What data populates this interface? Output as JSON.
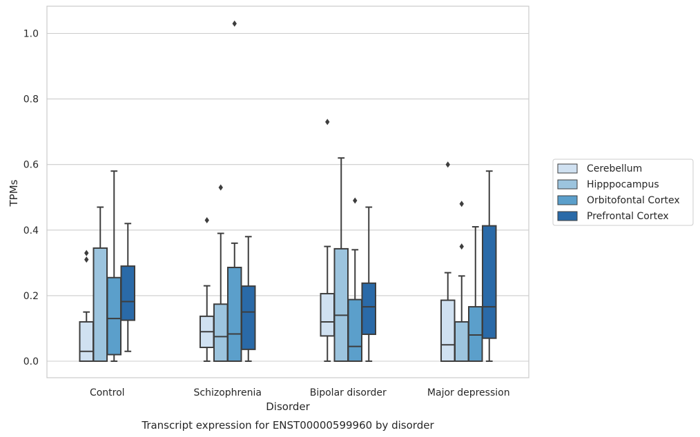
{
  "chart_data": {
    "type": "box",
    "title": "",
    "caption": "Transcript expression for ENST00000599960 by disorder",
    "xlabel": "Disorder",
    "ylabel": "TPMs",
    "ylim": [
      -0.05,
      1.08
    ],
    "yticks": [
      "0.0",
      "0.2",
      "0.4",
      "0.6",
      "0.8",
      "1.0"
    ],
    "grid": "horizontal",
    "legend_position": "right",
    "categories": [
      "Control",
      "Schizophrenia",
      "Bipolar disorder",
      "Major depression"
    ],
    "series": [
      {
        "name": "Cerebellum",
        "color": "#d0e1f1",
        "boxes": [
          {
            "whislo": 0.0,
            "q1": 0.0,
            "med": 0.03,
            "q3": 0.12,
            "whishi": 0.15,
            "fliers": [
              0.31,
              0.33
            ]
          },
          {
            "whislo": 0.0,
            "q1": 0.042,
            "med": 0.09,
            "q3": 0.137,
            "whishi": 0.23,
            "fliers": [
              0.43
            ]
          },
          {
            "whislo": 0.0,
            "q1": 0.077,
            "med": 0.12,
            "q3": 0.206,
            "whishi": 0.35,
            "fliers": [
              0.73
            ]
          },
          {
            "whislo": 0.0,
            "q1": 0.0,
            "med": 0.05,
            "q3": 0.186,
            "whishi": 0.27,
            "fliers": [
              0.6
            ]
          }
        ]
      },
      {
        "name": "Hipppocampus",
        "color": "#9cc4de",
        "boxes": [
          {
            "whislo": 0.0,
            "q1": 0.0,
            "med": 0.0,
            "q3": 0.345,
            "whishi": 0.47,
            "fliers": []
          },
          {
            "whislo": 0.0,
            "q1": 0.0,
            "med": 0.075,
            "q3": 0.174,
            "whishi": 0.39,
            "fliers": [
              0.53
            ]
          },
          {
            "whislo": 0.0,
            "q1": 0.0,
            "med": 0.14,
            "q3": 0.343,
            "whishi": 0.62,
            "fliers": []
          },
          {
            "whislo": 0.0,
            "q1": 0.0,
            "med": 0.0,
            "q3": 0.12,
            "whishi": 0.26,
            "fliers": [
              0.35,
              0.48
            ]
          }
        ]
      },
      {
        "name": "Orbitofontal Cortex",
        "color": "#5b9fcb",
        "boxes": [
          {
            "whislo": 0.0,
            "q1": 0.02,
            "med": 0.13,
            "q3": 0.255,
            "whishi": 0.58,
            "fliers": []
          },
          {
            "whislo": 0.0,
            "q1": 0.0,
            "med": 0.083,
            "q3": 0.286,
            "whishi": 0.36,
            "fliers": [
              1.03
            ]
          },
          {
            "whislo": 0.0,
            "q1": 0.0,
            "med": 0.045,
            "q3": 0.188,
            "whishi": 0.34,
            "fliers": [
              0.49
            ]
          },
          {
            "whislo": 0.0,
            "q1": 0.0,
            "med": 0.08,
            "q3": 0.166,
            "whishi": 0.41,
            "fliers": []
          }
        ]
      },
      {
        "name": "Prefrontal Cortex",
        "color": "#2a6aa8",
        "boxes": [
          {
            "whislo": 0.03,
            "q1": 0.125,
            "med": 0.182,
            "q3": 0.29,
            "whishi": 0.42,
            "fliers": []
          },
          {
            "whislo": 0.0,
            "q1": 0.036,
            "med": 0.15,
            "q3": 0.229,
            "whishi": 0.38,
            "fliers": []
          },
          {
            "whislo": 0.0,
            "q1": 0.082,
            "med": 0.166,
            "q3": 0.238,
            "whishi": 0.47,
            "fliers": []
          },
          {
            "whislo": 0.0,
            "q1": 0.07,
            "med": 0.166,
            "q3": 0.413,
            "whishi": 0.58,
            "fliers": []
          }
        ]
      }
    ]
  }
}
